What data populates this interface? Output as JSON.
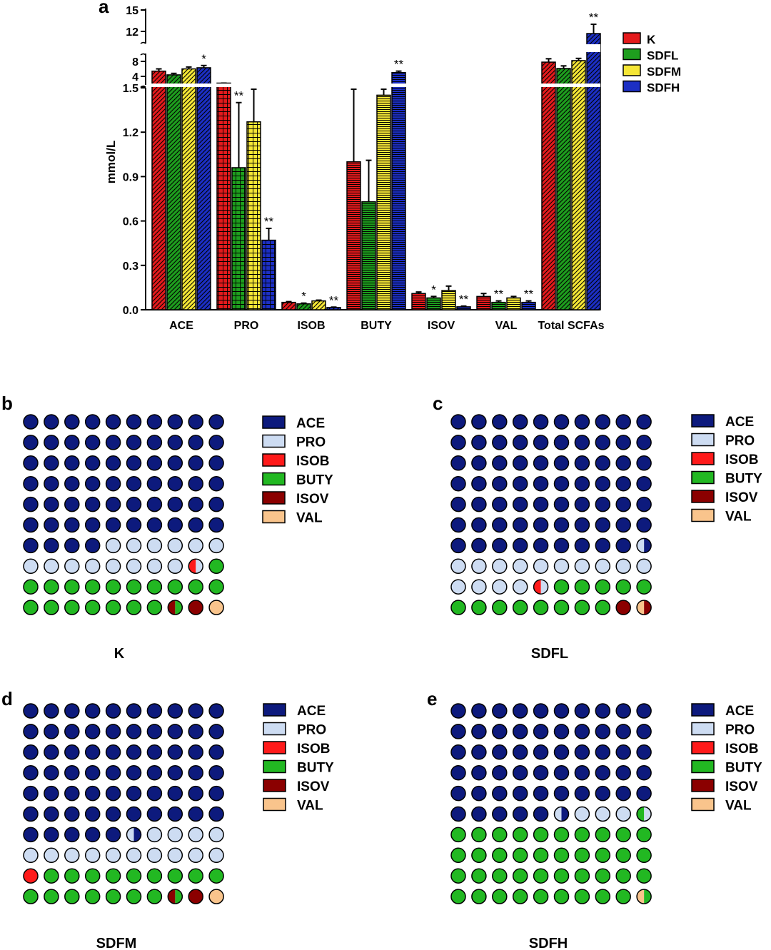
{
  "colors": {
    "K": "#e41a1c",
    "SDFL": "#1e9e1e",
    "SDFM": "#f5e636",
    "SDFH": "#1c2fc4",
    "pie": {
      "ACE": "#0d1a7d",
      "PRO": "#cddcf2",
      "ISOB": "#ff1a1a",
      "BUTY": "#22b822",
      "ISOV": "#8b0000",
      "VAL": "#f9c48c"
    }
  },
  "chart_data": [
    {
      "panel": "a",
      "type": "bar",
      "ylabel": "mmol/L",
      "ylim_lower": [
        0,
        1.5
      ],
      "yticks_lower": [
        "0.0",
        "0.3",
        "0.6",
        "0.9",
        "1.2",
        "1.5"
      ],
      "ylim_middle": [
        1.5,
        9
      ],
      "yticks_middle": [
        "4",
        "8"
      ],
      "ylim_upper": [
        11,
        15
      ],
      "yticks_upper": [
        "12",
        "15"
      ],
      "categories": [
        "ACE",
        "PRO",
        "ISOB",
        "BUTY",
        "ISOV",
        "VAL",
        "Total SCFAs"
      ],
      "series": [
        {
          "name": "K",
          "values": [
            5.4,
            2.2,
            0.05,
            1.0,
            0.11,
            0.09,
            7.8
          ],
          "errors": [
            0.6,
            0,
            0.005,
            0.5,
            0.01,
            0.02,
            0.9
          ]
        },
        {
          "name": "SDFL",
          "values": [
            4.4,
            0.96,
            0.04,
            0.73,
            0.08,
            0.05,
            6.1
          ],
          "errors": [
            0.4,
            0.44,
            0.005,
            0.28,
            0.01,
            0.01,
            0.7
          ]
        },
        {
          "name": "SDFM",
          "values": [
            6.0,
            1.27,
            0.06,
            1.45,
            0.13,
            0.08,
            8.2
          ],
          "errors": [
            0.5,
            0.23,
            0.005,
            0.05,
            0.03,
            0.01,
            0.6
          ]
        },
        {
          "name": "SDFH",
          "values": [
            6.3,
            0.47,
            0.015,
            5.0,
            0.02,
            0.05,
            11.7
          ],
          "errors": [
            0.6,
            0.08,
            0.003,
            0.4,
            0.005,
            0.01,
            1.3
          ]
        }
      ],
      "significance": [
        {
          "category": "ACE",
          "series": "SDFH",
          "label": "*"
        },
        {
          "category": "PRO",
          "series": "SDFL",
          "label": "**"
        },
        {
          "category": "PRO",
          "series": "SDFH",
          "label": "**"
        },
        {
          "category": "ISOB",
          "series": "SDFL",
          "label": "*"
        },
        {
          "category": "ISOB",
          "series": "SDFH",
          "label": "**"
        },
        {
          "category": "BUTY",
          "series": "SDFH",
          "label": "**"
        },
        {
          "category": "ISOV",
          "series": "SDFL",
          "label": "*"
        },
        {
          "category": "ISOV",
          "series": "SDFH",
          "label": "**"
        },
        {
          "category": "VAL",
          "series": "SDFL",
          "label": "**"
        },
        {
          "category": "VAL",
          "series": "SDFH",
          "label": "**"
        },
        {
          "category": "Total SCFAs",
          "series": "SDFH",
          "label": "**"
        }
      ],
      "legend": [
        "K",
        "SDFL",
        "SDFM",
        "SDFH"
      ],
      "legend_position": "right"
    },
    {
      "panel": "b",
      "type": "waffle",
      "title": "K",
      "legend": [
        "ACE",
        "PRO",
        "ISOB",
        "BUTY",
        "ISOV",
        "VAL"
      ],
      "values": {
        "ACE": 64,
        "PRO": 14.5,
        "ISOB": 0.5,
        "BUTY": 18.5,
        "ISOV": 1.5,
        "VAL": 1
      }
    },
    {
      "panel": "c",
      "type": "waffle",
      "title": "SDFL",
      "legend": [
        "ACE",
        "PRO",
        "ISOB",
        "BUTY",
        "ISOV",
        "VAL"
      ],
      "values": {
        "ACE": 69.5,
        "PRO": 15,
        "ISOB": 0.5,
        "BUTY": 13,
        "ISOV": 1.5,
        "VAL": 0.5
      }
    },
    {
      "panel": "d",
      "type": "waffle",
      "title": "SDFM",
      "legend": [
        "ACE",
        "PRO",
        "ISOB",
        "BUTY",
        "ISOV",
        "VAL"
      ],
      "values": {
        "ACE": 65.5,
        "PRO": 14.5,
        "ISOB": 1,
        "BUTY": 16.5,
        "ISOV": 1.5,
        "VAL": 1
      }
    },
    {
      "panel": "e",
      "type": "waffle",
      "title": "SDFH",
      "legend": [
        "ACE",
        "PRO",
        "ISOB",
        "BUTY",
        "ISOV",
        "VAL"
      ],
      "values": {
        "ACE": 55.5,
        "PRO": 4,
        "ISOB": 0,
        "BUTY": 40,
        "ISOV": 0,
        "VAL": 0.5
      }
    }
  ]
}
